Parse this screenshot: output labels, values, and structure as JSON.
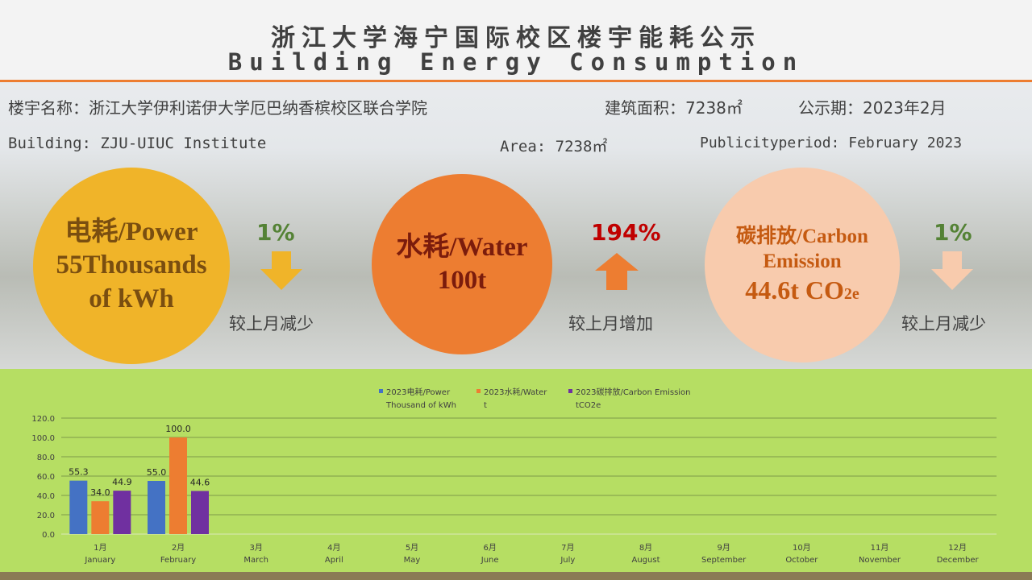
{
  "title_cn": "浙江大学海宁国际校区楼宇能耗公示",
  "title_en": "Building Energy Consumption",
  "info_cn": {
    "building": "楼宇名称：浙江大学伊利诺伊大学厄巴纳香槟校区联合学院",
    "area": "建筑面积：7238㎡",
    "period": "公示期：2023年2月"
  },
  "info_en": {
    "building": "Building: ZJU-UIUC Institute",
    "area": "Area: 7238㎡",
    "period": "Publicityperiod: February 2023"
  },
  "power": {
    "label": "电耗/Power",
    "value": "55Thousands",
    "unit": "of kWh",
    "change": "1%",
    "direction": "down",
    "caption": "较上月减少",
    "color": "#f0b429"
  },
  "water": {
    "label": "水耗/Water",
    "value": "100t",
    "change": "194%",
    "direction": "up",
    "caption": "较上月增加",
    "color": "#ed7d31"
  },
  "carbon": {
    "label": "碳排放/Carbon",
    "label2": "Emission",
    "value": "44.6t CO",
    "sub": "2e",
    "change": "1%",
    "direction": "down",
    "caption": "较上月减少",
    "color": "#f8cbad"
  },
  "chart_data": {
    "type": "bar",
    "categories": [
      [
        "1月",
        "January"
      ],
      [
        "2月",
        "February"
      ],
      [
        "3月",
        "March"
      ],
      [
        "4月",
        "April"
      ],
      [
        "5月",
        "May"
      ],
      [
        "6月",
        "June"
      ],
      [
        "7月",
        "July"
      ],
      [
        "8月",
        "August"
      ],
      [
        "9月",
        "September"
      ],
      [
        "10月",
        "October"
      ],
      [
        "11月",
        "November"
      ],
      [
        "12月",
        "December"
      ]
    ],
    "series": [
      {
        "name": "2023电耗/Power Thousand of kWh",
        "name_lines": [
          "2023电耗/Power",
          "Thousand of kWh"
        ],
        "color": "#4472c4",
        "values": [
          55.3,
          55.0,
          null,
          null,
          null,
          null,
          null,
          null,
          null,
          null,
          null,
          null
        ],
        "labels": [
          "55.3",
          "55.0"
        ]
      },
      {
        "name": "2023水耗/Water t",
        "name_lines": [
          "2023水耗/Water",
          "t"
        ],
        "color": "#ed7d31",
        "values": [
          34.0,
          100.0,
          null,
          null,
          null,
          null,
          null,
          null,
          null,
          null,
          null,
          null
        ],
        "labels": [
          "34.0",
          "100.0"
        ]
      },
      {
        "name": "2023碳排放/Carbon Emission tCO2e",
        "name_lines": [
          "2023碳排放/Carbon Emission",
          "tCO2e"
        ],
        "color": "#7030a0",
        "values": [
          44.9,
          44.6,
          null,
          null,
          null,
          null,
          null,
          null,
          null,
          null,
          null,
          null
        ],
        "labels": [
          "44.9",
          "44.6"
        ]
      }
    ],
    "yticks": [
      "0.0",
      "20.0",
      "40.0",
      "60.0",
      "80.0",
      "100.0",
      "120.0"
    ],
    "ylim": [
      0,
      120
    ],
    "grid": true,
    "legend": "top"
  }
}
